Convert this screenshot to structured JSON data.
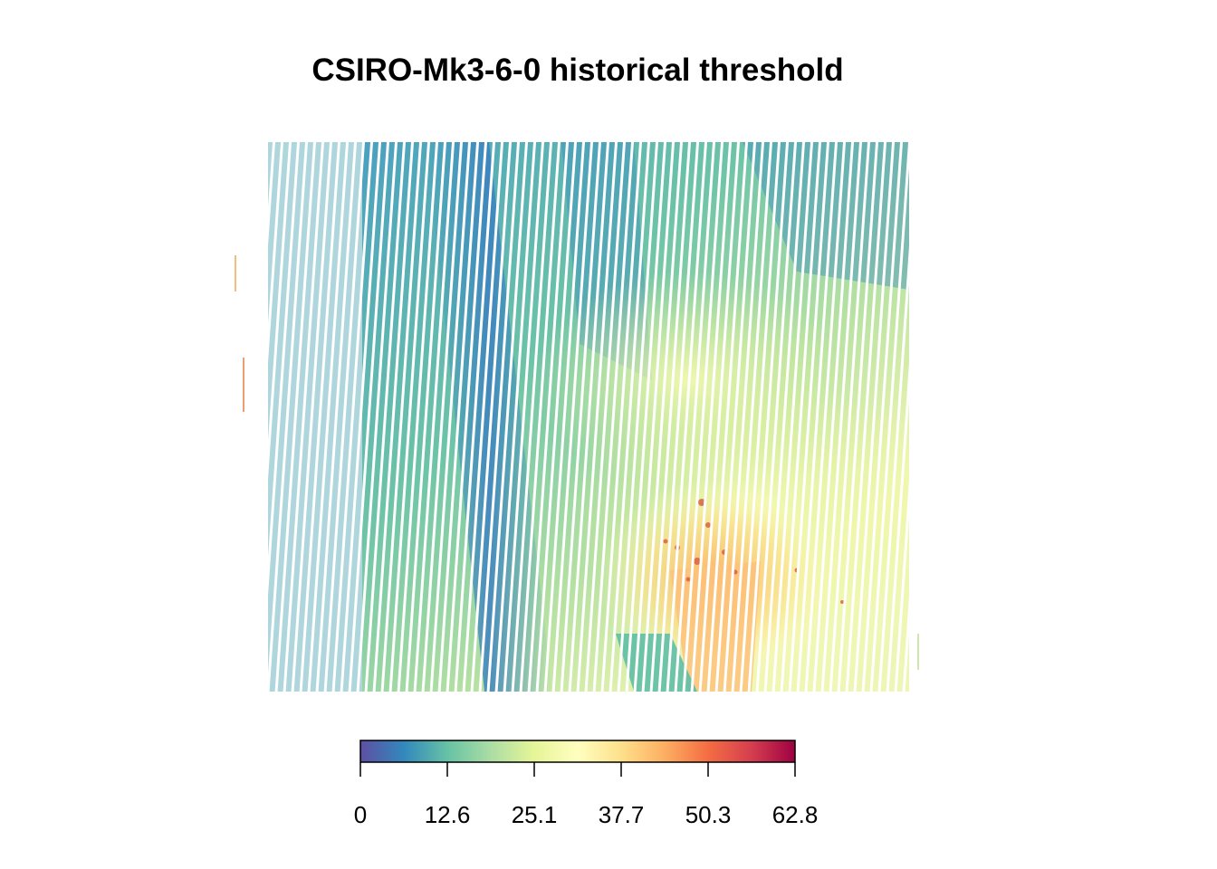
{
  "title": "CSIRO-Mk3-6-0 historical threshold",
  "legend": {
    "min": 0,
    "max": 62.8,
    "tick_labels": [
      "0",
      "12.6",
      "25.1",
      "37.7",
      "50.3",
      "62.8"
    ],
    "palette": [
      "#5e4fa2",
      "#3288bd",
      "#66c2a5",
      "#abdda4",
      "#e6f598",
      "#ffffbf",
      "#fee08b",
      "#fdae61",
      "#f46d43",
      "#d53e4f",
      "#9e0142"
    ]
  },
  "map": {
    "description_colors": {
      "low": "#3288bd",
      "mid": "#ffffbf",
      "high": "#d53e4f"
    }
  }
}
